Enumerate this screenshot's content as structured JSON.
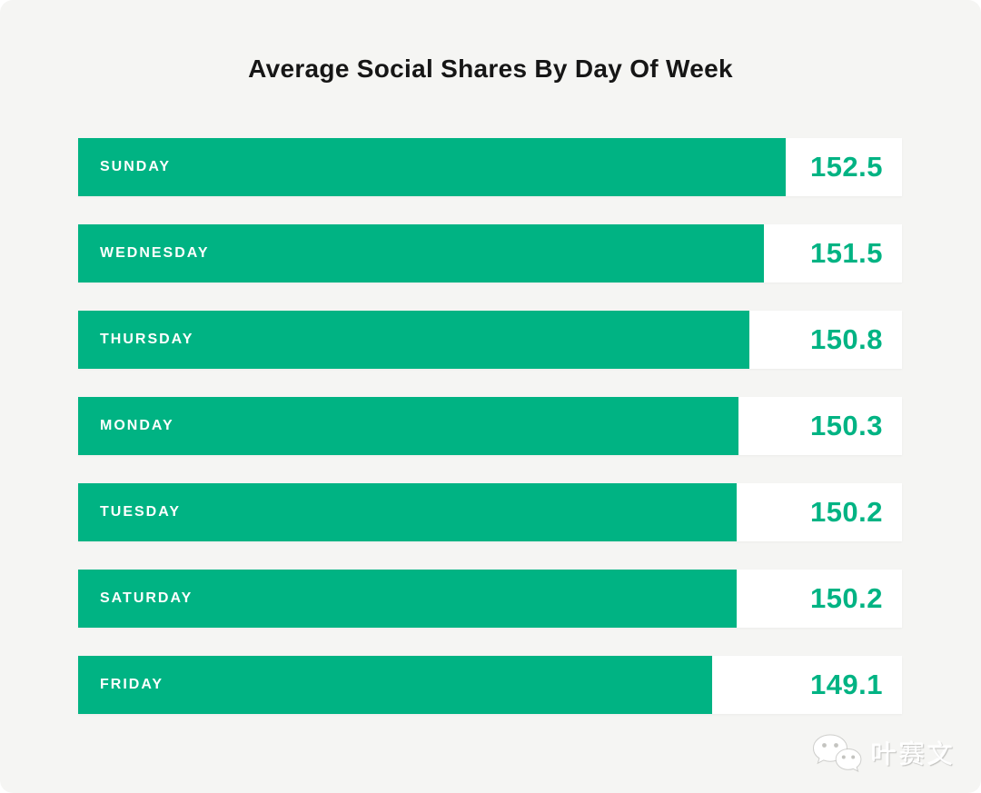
{
  "header": {
    "title": "Average Social Shares By Day Of Week"
  },
  "chart_data": {
    "type": "bar",
    "orientation": "horizontal",
    "title": "Average Social Shares By Day Of Week",
    "categories": [
      "SUNDAY",
      "WEDNESDAY",
      "THURSDAY",
      "MONDAY",
      "TUESDAY",
      "SATURDAY",
      "FRIDAY"
    ],
    "values": [
      152.5,
      151.5,
      150.8,
      150.3,
      150.2,
      150.2,
      149.1
    ],
    "value_labels": [
      "152.5",
      "151.5",
      "150.8",
      "150.3",
      "150.2",
      "150.2",
      "149.1"
    ],
    "xlabel": "",
    "ylabel": "",
    "legend": false,
    "grid": false,
    "axis_truncated": true,
    "colors": {
      "bar": "#00b383",
      "value_text": "#00b383",
      "category_text": "#ffffff",
      "track": "#ffffff",
      "background": "#f5f5f3",
      "title_text": "#161616"
    },
    "bar_scale": {
      "value_min": 149.1,
      "value_max": 152.5,
      "pct_min": 77.0,
      "pct_max": 85.9
    }
  },
  "watermark": {
    "text": "叶赛文",
    "icon": "wechat-icon"
  }
}
